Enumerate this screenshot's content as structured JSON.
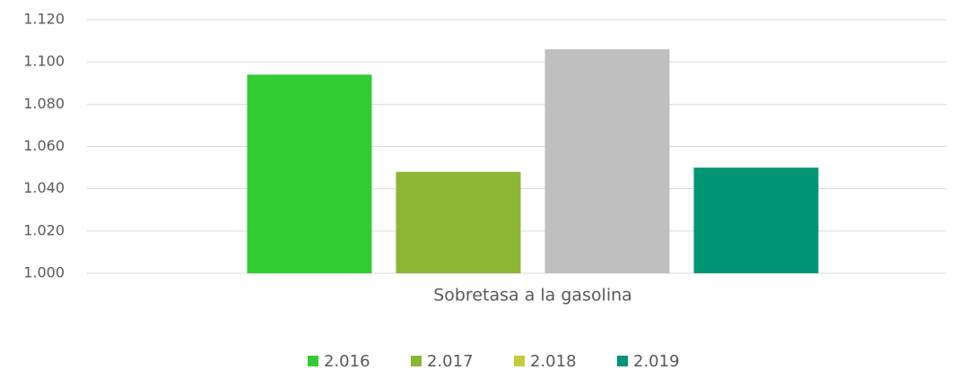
{
  "chart_data": {
    "type": "bar",
    "categories": [
      "Sobretasa a la gasolina"
    ],
    "series": [
      {
        "name": "2.016",
        "color": "#33cc33",
        "values": [
          1094
        ]
      },
      {
        "name": "2.017",
        "color": "#8db634",
        "values": [
          1048
        ]
      },
      {
        "name": "2.018",
        "color": "#c2cd3a",
        "bar_color": "#bfbfbf",
        "values": [
          1106
        ]
      },
      {
        "name": "2.019",
        "color": "#009675",
        "values": [
          1050
        ]
      }
    ],
    "ylim": [
      1000,
      1120
    ],
    "yticks": [
      {
        "value": 1000,
        "label": "1.000"
      },
      {
        "value": 1020,
        "label": "1.020"
      },
      {
        "value": 1040,
        "label": "1.040"
      },
      {
        "value": 1060,
        "label": "1.060"
      },
      {
        "value": 1080,
        "label": "1.080"
      },
      {
        "value": 1100,
        "label": "1.100"
      },
      {
        "value": 1120,
        "label": "1.120"
      }
    ],
    "grid": true,
    "legend": "bottom"
  }
}
